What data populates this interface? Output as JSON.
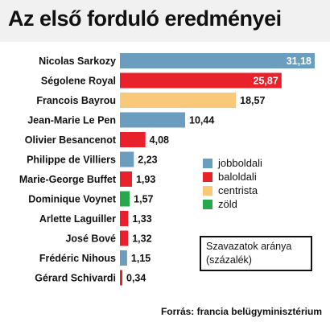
{
  "title": "Az első forduló eredményei",
  "source": "Forrás: francia belügyminisztérium",
  "note": {
    "line1": "Szavazatok aránya",
    "line2": "(százalék)"
  },
  "legend": [
    {
      "label": "jobboldali",
      "color": "#6b9dbf"
    },
    {
      "label": "baloldali",
      "color": "#e8212b"
    },
    {
      "label": "centrista",
      "color": "#f7c978"
    },
    {
      "label": "zöld",
      "color": "#27a84a"
    }
  ],
  "chart_data": {
    "type": "bar",
    "orientation": "horizontal",
    "title": "Az első forduló eredményei",
    "categories": [
      "Nicolas Sarkozy",
      "Ségolene Royal",
      "Francois Bayrou",
      "Jean-Marie Le Pen",
      "Olivier Besancenot",
      "Philippe de Villiers",
      "Marie-George Buffet",
      "Dominique Voynet",
      "Arlette Laguiller",
      "José Bové",
      "Frédéric Nihous",
      "Gérard Schivardi"
    ],
    "values": [
      31.18,
      25.87,
      18.57,
      10.44,
      4.08,
      2.23,
      1.93,
      1.57,
      1.33,
      1.32,
      1.15,
      0.34
    ],
    "value_labels": [
      "31,18",
      "25,87",
      "18,57",
      "10,44",
      "4,08",
      "2,23",
      "1,93",
      "1,57",
      "1,33",
      "1,32",
      "1,15",
      "0,34"
    ],
    "groups": [
      "jobboldali",
      "baloldali",
      "centrista",
      "jobboldali",
      "baloldali",
      "jobboldali",
      "baloldali",
      "zöld",
      "baloldali",
      "baloldali",
      "jobboldali",
      "baloldali"
    ],
    "xlim": [
      0,
      31.18
    ],
    "grid": false,
    "legend_position": "right"
  }
}
